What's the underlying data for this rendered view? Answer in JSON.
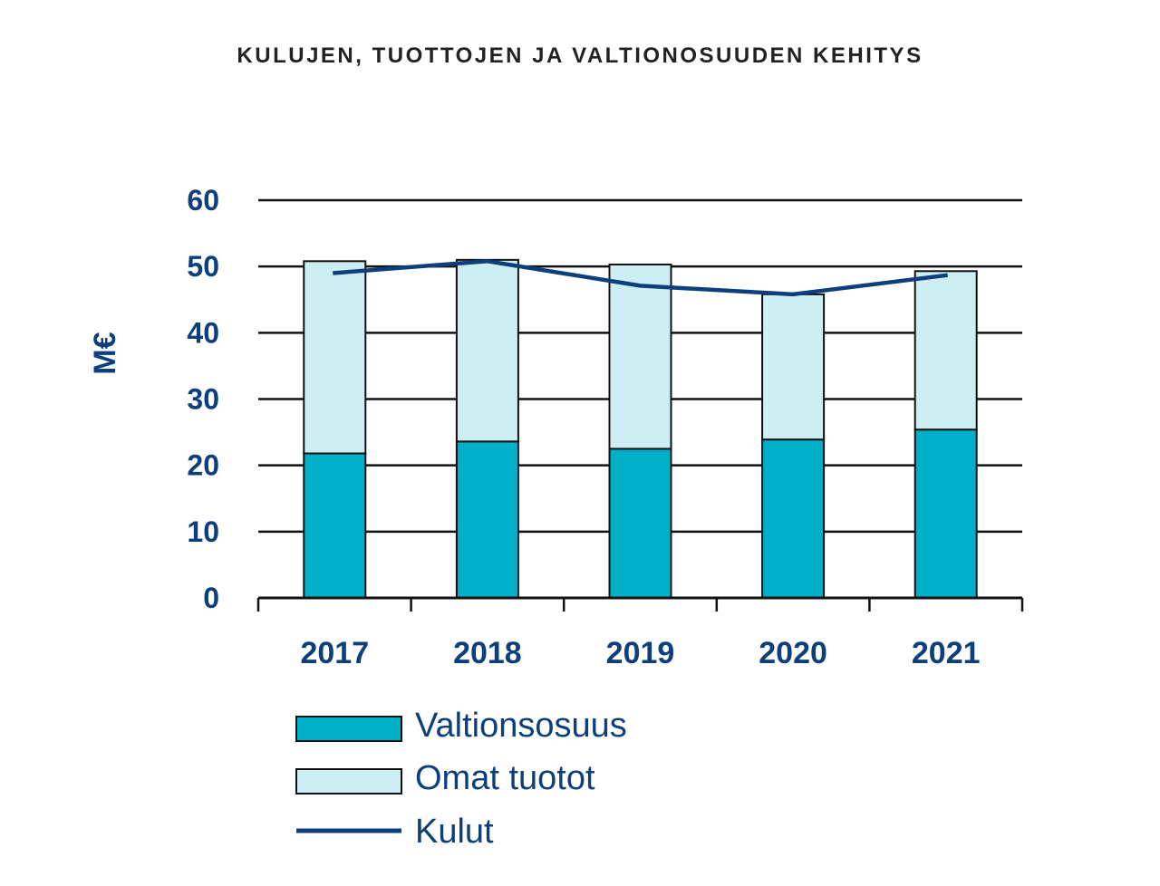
{
  "colors": {
    "valtionosuus": "#00afc8",
    "omat_tuotot": "#cdeef2",
    "kulut": "#0d3f7c",
    "axis_text": "#0d3f7c",
    "title_text": "#222222",
    "grid": "#111111"
  },
  "chart_data": {
    "type": "bar",
    "stacked": true,
    "title": "KULUJEN, TUOTTOJEN JA VALTIONOSUUDEN KEHITYS",
    "xlabel": "",
    "ylabel": "M€",
    "ylim": [
      0,
      60
    ],
    "yticks": [
      "0",
      "10",
      "20",
      "30",
      "40",
      "50",
      "60"
    ],
    "yticks_values": [
      0,
      10,
      20,
      30,
      40,
      50,
      60
    ],
    "categories": [
      "2017",
      "2018",
      "2019",
      "2020",
      "2021"
    ],
    "grid": true,
    "legend_position": "bottom-left",
    "series": [
      {
        "name": "Valtionsosuus",
        "type": "bar",
        "values": [
          21.8,
          23.6,
          22.5,
          23.9,
          25.4
        ]
      },
      {
        "name": "Omat tuotot",
        "type": "bar",
        "values": [
          29.0,
          27.4,
          27.8,
          21.9,
          23.9
        ]
      },
      {
        "name": "Kulut",
        "type": "line",
        "values": [
          49.0,
          50.8,
          47.1,
          45.8,
          48.7
        ]
      }
    ]
  }
}
